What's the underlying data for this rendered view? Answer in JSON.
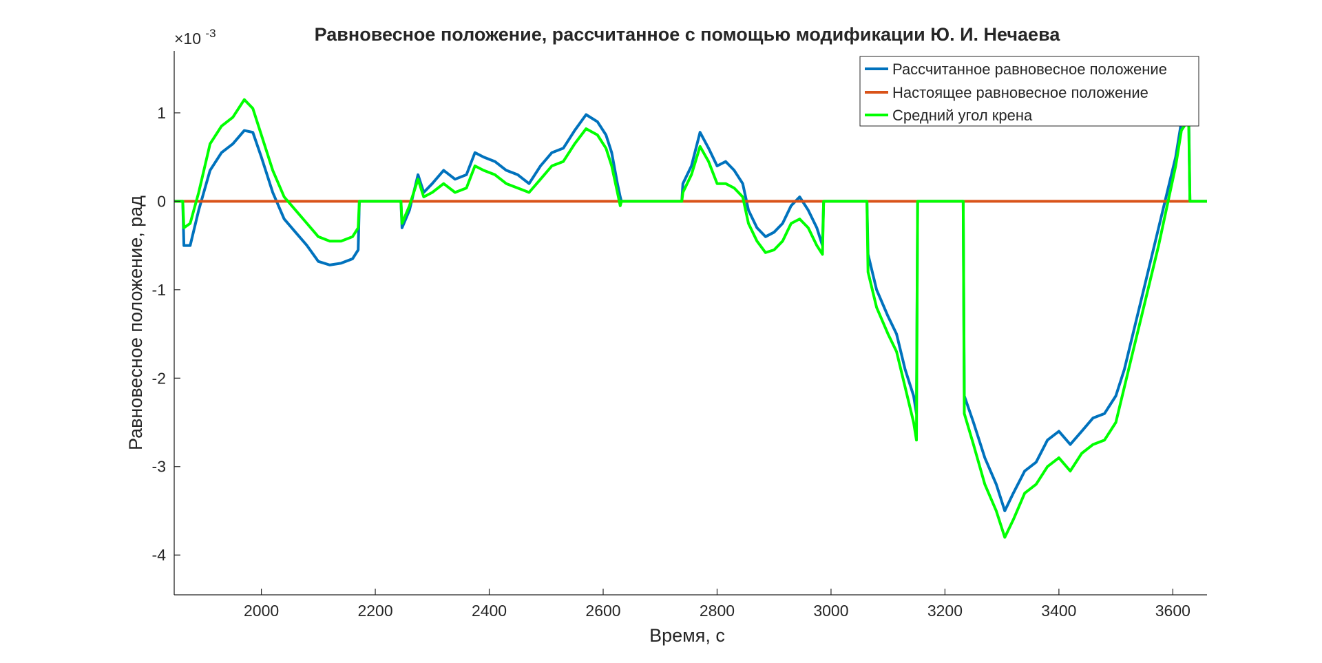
{
  "chart_data": {
    "type": "line",
    "title": "Равновесное положение, рассчитанное с помощью модификации Ю. И. Нечаева",
    "xlabel": "Время, с",
    "ylabel": "Равновесное положение, рад",
    "y_exponent_label": "×10",
    "y_exponent_power": "-3",
    "xlim": [
      1847,
      3660
    ],
    "ylim": [
      -4.45,
      1.7
    ],
    "x_ticks": [
      2000,
      2200,
      2400,
      2600,
      2800,
      3000,
      3200,
      3400,
      3600
    ],
    "x_tick_labels": [
      "2000",
      "2200",
      "2400",
      "2600",
      "2800",
      "3000",
      "3200",
      "3400",
      "3600"
    ],
    "y_ticks": [
      -4,
      -3,
      -2,
      -1,
      0,
      1
    ],
    "y_tick_labels": [
      "-4",
      "-3",
      "-2",
      "-1",
      "0",
      "1"
    ],
    "grid": false,
    "legend_position": "top-right",
    "series": [
      {
        "name": "Рассчитанное равновесное положение",
        "color": "#0072bd",
        "points": [
          [
            1847,
            0
          ],
          [
            1862,
            0
          ],
          [
            1864,
            -0.5
          ],
          [
            1875,
            -0.5
          ],
          [
            1890,
            -0.1
          ],
          [
            1910,
            0.35
          ],
          [
            1930,
            0.55
          ],
          [
            1950,
            0.65
          ],
          [
            1970,
            0.8
          ],
          [
            1985,
            0.78
          ],
          [
            2000,
            0.5
          ],
          [
            2020,
            0.1
          ],
          [
            2040,
            -0.2
          ],
          [
            2060,
            -0.35
          ],
          [
            2080,
            -0.5
          ],
          [
            2100,
            -0.68
          ],
          [
            2120,
            -0.72
          ],
          [
            2140,
            -0.7
          ],
          [
            2160,
            -0.65
          ],
          [
            2170,
            -0.55
          ],
          [
            2172,
            0
          ],
          [
            2245,
            0
          ],
          [
            2247,
            -0.3
          ],
          [
            2260,
            -0.1
          ],
          [
            2275,
            0.3
          ],
          [
            2285,
            0.1
          ],
          [
            2300,
            0.2
          ],
          [
            2320,
            0.35
          ],
          [
            2340,
            0.25
          ],
          [
            2360,
            0.3
          ],
          [
            2375,
            0.55
          ],
          [
            2390,
            0.5
          ],
          [
            2410,
            0.45
          ],
          [
            2430,
            0.35
          ],
          [
            2450,
            0.3
          ],
          [
            2470,
            0.2
          ],
          [
            2490,
            0.4
          ],
          [
            2510,
            0.55
          ],
          [
            2530,
            0.6
          ],
          [
            2550,
            0.8
          ],
          [
            2570,
            0.98
          ],
          [
            2590,
            0.9
          ],
          [
            2605,
            0.75
          ],
          [
            2615,
            0.55
          ],
          [
            2625,
            0.2
          ],
          [
            2630,
            0.05
          ],
          [
            2632,
            0
          ],
          [
            2738,
            0
          ],
          [
            2740,
            0.2
          ],
          [
            2755,
            0.4
          ],
          [
            2770,
            0.78
          ],
          [
            2785,
            0.6
          ],
          [
            2800,
            0.4
          ],
          [
            2815,
            0.45
          ],
          [
            2830,
            0.35
          ],
          [
            2845,
            0.2
          ],
          [
            2855,
            -0.1
          ],
          [
            2870,
            -0.3
          ],
          [
            2885,
            -0.4
          ],
          [
            2900,
            -0.35
          ],
          [
            2915,
            -0.25
          ],
          [
            2930,
            -0.05
          ],
          [
            2945,
            0.05
          ],
          [
            2960,
            -0.1
          ],
          [
            2975,
            -0.3
          ],
          [
            2985,
            -0.5
          ],
          [
            2987,
            0
          ],
          [
            3063,
            0
          ],
          [
            3065,
            -0.6
          ],
          [
            3080,
            -1.0
          ],
          [
            3100,
            -1.3
          ],
          [
            3115,
            -1.5
          ],
          [
            3130,
            -1.9
          ],
          [
            3145,
            -2.2
          ],
          [
            3150,
            -2.4
          ],
          [
            3152,
            0
          ],
          [
            3232,
            0
          ],
          [
            3234,
            -2.2
          ],
          [
            3250,
            -2.5
          ],
          [
            3270,
            -2.9
          ],
          [
            3290,
            -3.2
          ],
          [
            3305,
            -3.5
          ],
          [
            3320,
            -3.3
          ],
          [
            3340,
            -3.05
          ],
          [
            3360,
            -2.95
          ],
          [
            3380,
            -2.7
          ],
          [
            3400,
            -2.6
          ],
          [
            3420,
            -2.75
          ],
          [
            3440,
            -2.6
          ],
          [
            3460,
            -2.45
          ],
          [
            3480,
            -2.4
          ],
          [
            3500,
            -2.2
          ],
          [
            3515,
            -1.9
          ],
          [
            3530,
            -1.5
          ],
          [
            3545,
            -1.1
          ],
          [
            3560,
            -0.7
          ],
          [
            3575,
            -0.3
          ],
          [
            3590,
            0.1
          ],
          [
            3605,
            0.5
          ],
          [
            3615,
            0.9
          ],
          [
            3625,
            1.0
          ],
          [
            3628,
            0.95
          ],
          [
            3630,
            0
          ],
          [
            3660,
            0
          ]
        ]
      },
      {
        "name": "Настоящее равновесное положение",
        "color": "#d95319",
        "points": [
          [
            1847,
            0
          ],
          [
            3660,
            0
          ]
        ]
      },
      {
        "name": "Средний угол крена",
        "color": "#00ff00",
        "points": [
          [
            1847,
            0
          ],
          [
            1862,
            0
          ],
          [
            1864,
            -0.3
          ],
          [
            1875,
            -0.25
          ],
          [
            1890,
            0.1
          ],
          [
            1910,
            0.65
          ],
          [
            1930,
            0.85
          ],
          [
            1950,
            0.95
          ],
          [
            1970,
            1.15
          ],
          [
            1985,
            1.05
          ],
          [
            2000,
            0.75
          ],
          [
            2020,
            0.35
          ],
          [
            2040,
            0.05
          ],
          [
            2060,
            -0.1
          ],
          [
            2080,
            -0.25
          ],
          [
            2100,
            -0.4
          ],
          [
            2120,
            -0.45
          ],
          [
            2140,
            -0.45
          ],
          [
            2160,
            -0.4
          ],
          [
            2170,
            -0.3
          ],
          [
            2172,
            0
          ],
          [
            2245,
            0
          ],
          [
            2247,
            -0.25
          ],
          [
            2260,
            -0.05
          ],
          [
            2275,
            0.25
          ],
          [
            2285,
            0.05
          ],
          [
            2300,
            0.1
          ],
          [
            2320,
            0.2
          ],
          [
            2340,
            0.1
          ],
          [
            2360,
            0.15
          ],
          [
            2375,
            0.4
          ],
          [
            2390,
            0.35
          ],
          [
            2410,
            0.3
          ],
          [
            2430,
            0.2
          ],
          [
            2450,
            0.15
          ],
          [
            2470,
            0.1
          ],
          [
            2490,
            0.25
          ],
          [
            2510,
            0.4
          ],
          [
            2530,
            0.45
          ],
          [
            2550,
            0.65
          ],
          [
            2570,
            0.82
          ],
          [
            2590,
            0.75
          ],
          [
            2605,
            0.6
          ],
          [
            2615,
            0.4
          ],
          [
            2625,
            0.1
          ],
          [
            2630,
            -0.05
          ],
          [
            2632,
            0
          ],
          [
            2738,
            0
          ],
          [
            2740,
            0.1
          ],
          [
            2755,
            0.3
          ],
          [
            2770,
            0.62
          ],
          [
            2785,
            0.45
          ],
          [
            2800,
            0.2
          ],
          [
            2815,
            0.2
          ],
          [
            2830,
            0.15
          ],
          [
            2845,
            0.05
          ],
          [
            2855,
            -0.25
          ],
          [
            2870,
            -0.45
          ],
          [
            2885,
            -0.58
          ],
          [
            2900,
            -0.55
          ],
          [
            2915,
            -0.45
          ],
          [
            2930,
            -0.25
          ],
          [
            2945,
            -0.2
          ],
          [
            2960,
            -0.3
          ],
          [
            2975,
            -0.5
          ],
          [
            2985,
            -0.6
          ],
          [
            2987,
            0
          ],
          [
            3063,
            0
          ],
          [
            3065,
            -0.8
          ],
          [
            3080,
            -1.2
          ],
          [
            3100,
            -1.5
          ],
          [
            3115,
            -1.7
          ],
          [
            3130,
            -2.1
          ],
          [
            3145,
            -2.5
          ],
          [
            3150,
            -2.7
          ],
          [
            3152,
            0
          ],
          [
            3232,
            0
          ],
          [
            3234,
            -2.4
          ],
          [
            3250,
            -2.75
          ],
          [
            3270,
            -3.2
          ],
          [
            3290,
            -3.5
          ],
          [
            3305,
            -3.8
          ],
          [
            3320,
            -3.6
          ],
          [
            3340,
            -3.3
          ],
          [
            3360,
            -3.2
          ],
          [
            3380,
            -3.0
          ],
          [
            3400,
            -2.9
          ],
          [
            3420,
            -3.05
          ],
          [
            3440,
            -2.85
          ],
          [
            3460,
            -2.75
          ],
          [
            3480,
            -2.7
          ],
          [
            3500,
            -2.5
          ],
          [
            3515,
            -2.1
          ],
          [
            3530,
            -1.7
          ],
          [
            3545,
            -1.3
          ],
          [
            3560,
            -0.9
          ],
          [
            3575,
            -0.5
          ],
          [
            3590,
            -0.05
          ],
          [
            3605,
            0.4
          ],
          [
            3615,
            0.8
          ],
          [
            3625,
            0.9
          ],
          [
            3628,
            0.85
          ],
          [
            3630,
            0
          ],
          [
            3660,
            0
          ]
        ]
      }
    ]
  }
}
